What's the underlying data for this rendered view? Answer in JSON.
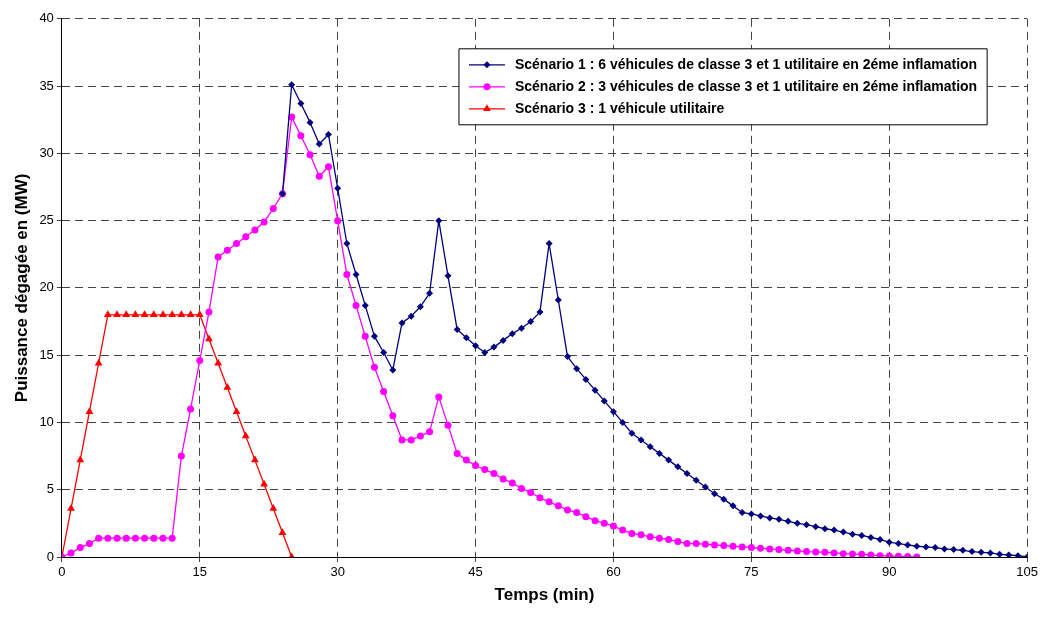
{
  "chart_data": {
    "type": "line",
    "xlabel": "Temps (min)",
    "ylabel": "Puissance dégagée en (MW)",
    "xlim": [
      0,
      105
    ],
    "xticks": [
      0,
      15,
      30,
      45,
      60,
      75,
      90,
      105
    ],
    "ylim": [
      0,
      40
    ],
    "yticks": [
      0,
      5,
      10,
      15,
      20,
      25,
      30,
      35,
      40
    ],
    "grid": true,
    "legend": "top right",
    "line_style": "solid",
    "series": [
      {
        "name": "Scénario 1 : 6 véhicules de classe 3 et 1 utilitaire en 2éme inflamation",
        "color": "#000080",
        "marker": "diamond",
        "x": [
          24,
          25,
          26,
          27,
          28,
          29,
          30,
          31,
          32,
          33,
          34,
          35,
          36,
          37,
          38,
          39,
          40,
          41,
          42,
          43,
          44,
          45,
          46,
          47,
          48,
          49,
          50,
          51,
          52,
          53,
          54,
          55,
          56,
          57,
          58,
          59,
          60,
          61,
          62,
          63,
          64,
          65,
          66,
          67,
          68,
          69,
          70,
          71,
          72,
          73,
          74,
          75,
          76,
          77,
          78,
          79,
          80,
          81,
          82,
          83,
          84,
          85,
          86,
          87,
          88,
          89,
          90,
          91,
          92,
          93,
          94,
          95,
          96,
          97,
          98,
          99,
          100,
          101,
          102,
          103,
          104,
          105
        ],
        "values": [
          27.0,
          35.1,
          33.7,
          32.3,
          30.7,
          31.4,
          27.4,
          23.3,
          21.0,
          18.7,
          16.4,
          15.2,
          13.9,
          17.4,
          17.9,
          18.6,
          19.6,
          25.0,
          20.9,
          16.9,
          16.3,
          15.7,
          15.2,
          15.6,
          16.1,
          16.6,
          17.0,
          17.5,
          18.2,
          23.3,
          19.1,
          14.9,
          14.0,
          13.2,
          12.4,
          11.6,
          10.8,
          10.0,
          9.2,
          8.7,
          8.2,
          7.7,
          7.2,
          6.7,
          6.2,
          5.7,
          5.2,
          4.7,
          4.3,
          3.8,
          3.3,
          3.2,
          3.05,
          2.9,
          2.8,
          2.65,
          2.5,
          2.4,
          2.25,
          2.1,
          2.0,
          1.85,
          1.7,
          1.6,
          1.45,
          1.3,
          1.1,
          1.0,
          0.9,
          0.8,
          0.75,
          0.7,
          0.6,
          0.55,
          0.5,
          0.4,
          0.35,
          0.3,
          0.2,
          0.15,
          0.1,
          0.0
        ]
      },
      {
        "name": "Scénario 2 : 3 véhicules de classe 3 et 1 utilitaire en 2éme inflamation",
        "color": "#ff00ff",
        "marker": "circle",
        "x": [
          0,
          1,
          2,
          3,
          4,
          5,
          6,
          7,
          8,
          9,
          10,
          11,
          12,
          13,
          14,
          15,
          16,
          17,
          18,
          19,
          20,
          21,
          22,
          23,
          24,
          25,
          26,
          27,
          28,
          29,
          30,
          31,
          32,
          33,
          34,
          35,
          36,
          37,
          38,
          39,
          40,
          41,
          42,
          43,
          44,
          45,
          46,
          47,
          48,
          49,
          50,
          51,
          52,
          53,
          54,
          55,
          56,
          57,
          58,
          59,
          60,
          61,
          62,
          63,
          64,
          65,
          66,
          67,
          68,
          69,
          70,
          71,
          72,
          73,
          74,
          75,
          76,
          77,
          78,
          79,
          80,
          81,
          82,
          83,
          84,
          85,
          86,
          87,
          88,
          89,
          90,
          91,
          92,
          93
        ],
        "values": [
          0,
          0.3,
          0.7,
          1.0,
          1.4,
          1.4,
          1.4,
          1.4,
          1.4,
          1.4,
          1.4,
          1.4,
          1.4,
          7.5,
          11.0,
          14.6,
          18.2,
          22.3,
          22.8,
          23.3,
          23.8,
          24.3,
          24.9,
          25.9,
          27.0,
          32.7,
          31.3,
          29.9,
          28.3,
          29.0,
          25.0,
          21.0,
          18.7,
          16.4,
          14.1,
          12.3,
          10.5,
          8.7,
          8.7,
          9.0,
          9.3,
          11.9,
          9.8,
          7.7,
          7.2,
          6.8,
          6.5,
          6.2,
          5.8,
          5.5,
          5.1,
          4.8,
          4.4,
          4.1,
          3.8,
          3.5,
          3.3,
          3.0,
          2.7,
          2.5,
          2.3,
          2.0,
          1.75,
          1.65,
          1.5,
          1.4,
          1.3,
          1.15,
          1.0,
          1.0,
          0.95,
          0.9,
          0.85,
          0.8,
          0.75,
          0.7,
          0.65,
          0.6,
          0.55,
          0.5,
          0.45,
          0.4,
          0.38,
          0.35,
          0.3,
          0.25,
          0.22,
          0.2,
          0.15,
          0.1,
          0.08,
          0.05,
          0.03,
          0
        ]
      },
      {
        "name": "Scénario 3 : 1 véhicule utilitaire",
        "color": "#ff0000",
        "marker": "triangle",
        "x": [
          0,
          1,
          2,
          3,
          4,
          5,
          6,
          7,
          8,
          9,
          10,
          11,
          12,
          13,
          14,
          15,
          16,
          17,
          18,
          19,
          20,
          21,
          22,
          23,
          24,
          25
        ],
        "values": [
          0,
          3.6,
          7.2,
          10.8,
          14.4,
          18,
          18,
          18,
          18,
          18,
          18,
          18,
          18,
          18,
          18,
          18,
          16.2,
          14.4,
          12.6,
          10.8,
          9.0,
          7.2,
          5.4,
          3.6,
          1.8,
          0
        ]
      }
    ]
  }
}
